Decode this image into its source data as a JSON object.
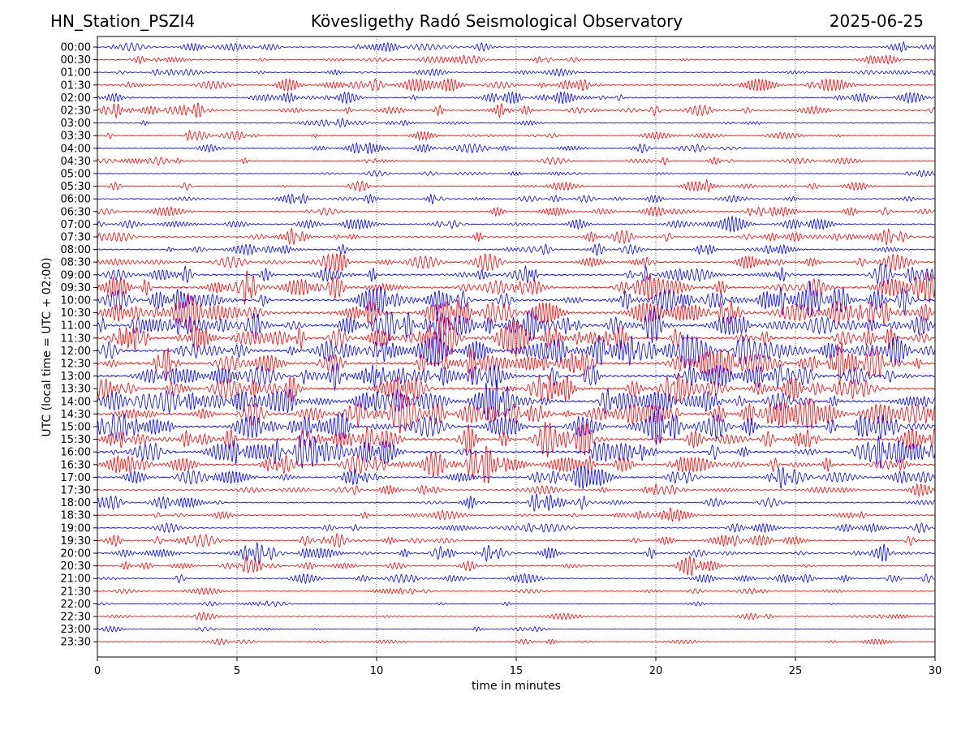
{
  "header": {
    "station": "HN_Station_PSZI4",
    "title": "Kövesligethy Radó Seismological Observatory",
    "date": "2025-06-25"
  },
  "chart_data": {
    "type": "line",
    "title": "Kövesligethy Radó Seismological Observatory",
    "xlabel": "time in minutes",
    "ylabel": "UTC (local time = UTC + 02:00)",
    "xlim": [
      0,
      30
    ],
    "xticks": [
      "0",
      "5",
      "10",
      "15",
      "20",
      "25",
      "30"
    ],
    "grid": "vertical dotted at x ticks",
    "series_colors": [
      "#0000ff",
      "#ff0000"
    ],
    "rows": [
      {
        "label": "00:00",
        "activity": 0.25
      },
      {
        "label": "00:30",
        "activity": 0.3
      },
      {
        "label": "01:00",
        "activity": 0.25
      },
      {
        "label": "01:30",
        "activity": 0.45
      },
      {
        "label": "02:00",
        "activity": 0.4
      },
      {
        "label": "02:30",
        "activity": 0.45
      },
      {
        "label": "03:00",
        "activity": 0.2
      },
      {
        "label": "03:30",
        "activity": 0.3
      },
      {
        "label": "04:00",
        "activity": 0.3
      },
      {
        "label": "04:30",
        "activity": 0.25
      },
      {
        "label": "05:00",
        "activity": 0.15
      },
      {
        "label": "05:30",
        "activity": 0.25
      },
      {
        "label": "06:00",
        "activity": 0.3
      },
      {
        "label": "06:30",
        "activity": 0.3
      },
      {
        "label": "07:00",
        "activity": 0.35
      },
      {
        "label": "07:30",
        "activity": 0.45
      },
      {
        "label": "08:00",
        "activity": 0.45
      },
      {
        "label": "08:30",
        "activity": 0.5
      },
      {
        "label": "09:00",
        "activity": 0.65
      },
      {
        "label": "09:30",
        "activity": 0.8
      },
      {
        "label": "10:00",
        "activity": 1.0
      },
      {
        "label": "10:30",
        "activity": 0.95
      },
      {
        "label": "11:00",
        "activity": 1.0
      },
      {
        "label": "11:30",
        "activity": 1.0
      },
      {
        "label": "12:00",
        "activity": 1.0
      },
      {
        "label": "12:30",
        "activity": 1.0
      },
      {
        "label": "13:00",
        "activity": 1.0
      },
      {
        "label": "13:30",
        "activity": 0.95
      },
      {
        "label": "14:00",
        "activity": 1.0
      },
      {
        "label": "14:30",
        "activity": 1.0
      },
      {
        "label": "15:00",
        "activity": 0.95
      },
      {
        "label": "15:30",
        "activity": 0.95
      },
      {
        "label": "16:00",
        "activity": 1.0
      },
      {
        "label": "16:30",
        "activity": 0.8
      },
      {
        "label": "17:00",
        "activity": 0.55
      },
      {
        "label": "17:30",
        "activity": 0.35
      },
      {
        "label": "18:00",
        "activity": 0.45
      },
      {
        "label": "18:30",
        "activity": 0.35
      },
      {
        "label": "19:00",
        "activity": 0.3
      },
      {
        "label": "19:30",
        "activity": 0.45
      },
      {
        "label": "20:00",
        "activity": 0.5
      },
      {
        "label": "20:30",
        "activity": 0.45
      },
      {
        "label": "21:00",
        "activity": 0.35
      },
      {
        "label": "21:30",
        "activity": 0.15
      },
      {
        "label": "22:00",
        "activity": 0.08
      },
      {
        "label": "22:30",
        "activity": 0.15
      },
      {
        "label": "23:00",
        "activity": 0.08
      },
      {
        "label": "23:30",
        "activity": 0.12
      }
    ]
  }
}
